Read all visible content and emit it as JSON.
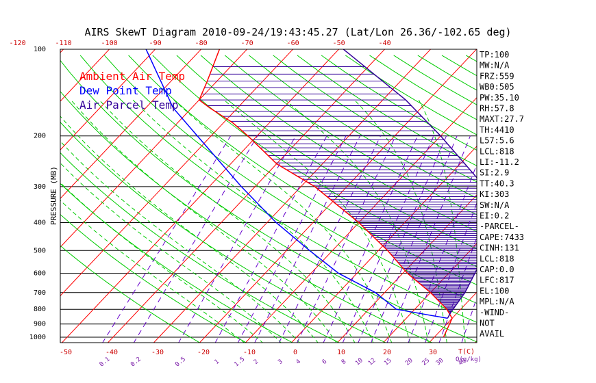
{
  "chart_data": {
    "type": "skewt",
    "title": "AIRS SkewT Diagram 2010-09-24/19:43:45.27 (Lat/Lon 26.36/-102.65 deg)",
    "ylabel": "PRESSURE (MB)",
    "pressure_ticks": [
      100,
      200,
      300,
      400,
      500,
      600,
      700,
      800,
      900,
      1000
    ],
    "temp_ticks_top": [
      -120,
      -110,
      -100,
      -90,
      -80,
      -70,
      -60,
      -50,
      -40
    ],
    "temp_ticks_bottom": [
      -50,
      -40,
      -30,
      -20,
      -10,
      0,
      10,
      20,
      30
    ],
    "temp_unit_label": "T(C)",
    "mixing_ratio_ticks": [
      "0.1",
      "0.2",
      "0.5",
      "1",
      "1.5",
      "2",
      "3",
      "4",
      "6",
      "8",
      "10",
      "12",
      "15",
      "20",
      "25",
      "30",
      "40"
    ],
    "mixing_unit_label": "Q(g/kg)",
    "grid": true,
    "colors": {
      "ambient": "#ff0000",
      "dewpoint": "#0000ff",
      "parcel": "#330099",
      "isotherm": "#ff0000",
      "dry_adiabat": "#00cc00",
      "moist_adiabat": "#00cc00",
      "mixing_line": "#6600cc",
      "isobar": "#000000",
      "cape_hatch": "#330099"
    },
    "legend": [
      {
        "label": "Ambient Air Temp",
        "color": "#ff0000"
      },
      {
        "label": "Dew Point Temp",
        "color": "#0000ff"
      },
      {
        "label": "Air Parcel Temp",
        "color": "#330099"
      }
    ],
    "series": [
      {
        "name": "Ambient Air Temp",
        "points": [
          [
            1000,
            32
          ],
          [
            860,
            30
          ],
          [
            800,
            27
          ],
          [
            700,
            20
          ],
          [
            600,
            11
          ],
          [
            500,
            2
          ],
          [
            400,
            -10
          ],
          [
            300,
            -27
          ],
          [
            250,
            -40
          ],
          [
            200,
            -52
          ],
          [
            180,
            -58
          ],
          [
            160,
            -66
          ],
          [
            150,
            -70
          ],
          [
            130,
            -72
          ],
          [
            100,
            -76
          ]
        ]
      },
      {
        "name": "Dew Point Temp",
        "points": [
          [
            860,
            29
          ],
          [
            800,
            16
          ],
          [
            700,
            8
          ],
          [
            600,
            -4
          ],
          [
            500,
            -15
          ],
          [
            400,
            -28
          ],
          [
            300,
            -43
          ],
          [
            250,
            -52
          ],
          [
            200,
            -63
          ],
          [
            160,
            -74
          ],
          [
            100,
            -92
          ]
        ]
      },
      {
        "name": "Air Parcel Temp",
        "points": [
          [
            860,
            29
          ],
          [
            820,
            28.5
          ],
          [
            700,
            27.5
          ],
          [
            600,
            25.7
          ],
          [
            500,
            23.5
          ],
          [
            400,
            19
          ],
          [
            350,
            16
          ],
          [
            300,
            10
          ],
          [
            250,
            1
          ],
          [
            200,
            -10
          ],
          [
            150,
            -25
          ],
          [
            100,
            -49
          ]
        ]
      }
    ],
    "indices": [
      "TP:100",
      "MW:N/A",
      "FRZ:559",
      "WB0:505",
      "PW:35.10",
      "RH:57.8",
      "MAXT:27.7",
      "TH:4410",
      "L57:5.6",
      "LCL:818",
      "LI:-11.2",
      "SI:2.9",
      "TT:40.3",
      "KI:303",
      "SW:N/A",
      "EI:0.2",
      "-PARCEL-",
      "CAPE:7433",
      "CINH:131",
      "LCL:818",
      "CAP:0.0",
      "LFC:817",
      "EL:100",
      "MPL:N/A",
      "-WIND-",
      "NOT",
      "AVAIL"
    ]
  }
}
